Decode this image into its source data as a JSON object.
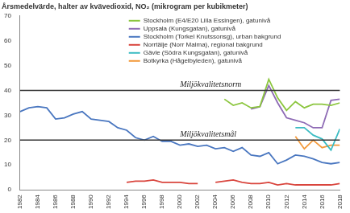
{
  "chart_data": {
    "type": "line",
    "title": "Årsmedelvärde, halter av kvävedioxid, NO₂ (mikrogram per kubikmeter)",
    "x": [
      1982,
      1983,
      1984,
      1985,
      1986,
      1987,
      1988,
      1989,
      1990,
      1991,
      1992,
      1993,
      1994,
      1995,
      1996,
      1997,
      1998,
      1999,
      2000,
      2001,
      2002,
      2003,
      2004,
      2005,
      2006,
      2007,
      2008,
      2009,
      2010,
      2011,
      2012,
      2013,
      2014,
      2015,
      2016,
      2017,
      2018
    ],
    "series": [
      {
        "name": "Stockholm (E4/E20 Lilla Essingen), gatunivå",
        "color": "#8cc63f",
        "values": [
          null,
          null,
          null,
          null,
          null,
          null,
          null,
          null,
          null,
          null,
          null,
          null,
          null,
          null,
          null,
          null,
          null,
          null,
          null,
          null,
          null,
          null,
          null,
          36.5,
          34,
          35,
          33,
          33.5,
          44.5,
          37,
          32,
          35.5,
          33,
          34.5,
          34.5,
          34,
          35
        ]
      },
      {
        "name": "Uppsala (Kungsgatan), gatunivå",
        "color": "#8e6bb5",
        "values": [
          null,
          null,
          null,
          null,
          null,
          null,
          null,
          null,
          null,
          null,
          null,
          null,
          null,
          null,
          null,
          null,
          null,
          null,
          null,
          null,
          null,
          null,
          null,
          null,
          null,
          null,
          32.5,
          33.5,
          42,
          35,
          29,
          28,
          27,
          25,
          25,
          36,
          36.5
        ]
      },
      {
        "name": "Stockholm (Torkel Knutssonsg), urban bakgrund",
        "color": "#4a77c0",
        "values": [
          31.5,
          33,
          33.5,
          33,
          28.5,
          29,
          30.5,
          31.5,
          28.5,
          28,
          27.5,
          25,
          24,
          21,
          20,
          21.5,
          19.5,
          19.5,
          18,
          18.5,
          17.5,
          18,
          16.5,
          17,
          15.5,
          17,
          14,
          13.5,
          15,
          10.5,
          12,
          14,
          13.5,
          12.5,
          11,
          10.5,
          11
        ]
      },
      {
        "name": "Norrtälje (Norr Malma), regional bakgrund",
        "color": "#d9453d",
        "values": [
          null,
          null,
          null,
          null,
          null,
          null,
          null,
          null,
          null,
          null,
          null,
          null,
          3,
          3.5,
          3.5,
          4,
          3,
          3,
          3,
          2.5,
          2.5,
          null,
          3,
          3.5,
          4,
          3,
          2.5,
          2.5,
          3,
          2,
          2.5,
          2,
          2,
          2,
          2,
          2,
          2.5
        ]
      },
      {
        "name": "Gävle (Södra Kungsgatan), gatunivå",
        "color": "#3cbcc3",
        "values": [
          null,
          null,
          null,
          null,
          null,
          null,
          null,
          null,
          null,
          null,
          null,
          null,
          null,
          null,
          null,
          null,
          null,
          null,
          null,
          null,
          null,
          null,
          null,
          null,
          null,
          null,
          null,
          null,
          null,
          null,
          null,
          25,
          25,
          22,
          20.5,
          16,
          24.5
        ]
      },
      {
        "name": "Botkyrka (Hågelbyleden), gatunivå",
        "color": "#f39a3c",
        "values": [
          null,
          null,
          null,
          null,
          null,
          null,
          null,
          null,
          null,
          null,
          null,
          null,
          null,
          null,
          null,
          null,
          null,
          null,
          null,
          null,
          null,
          null,
          null,
          null,
          null,
          null,
          null,
          null,
          null,
          null,
          null,
          21.5,
          16.5,
          20,
          17,
          18,
          18
        ]
      }
    ],
    "annotations": [
      {
        "text": "Miljökvalitetsnorm",
        "y": 40,
        "x": 2000
      },
      {
        "text": "Miljökvalitetsmål",
        "y": 20,
        "x": 2000
      }
    ],
    "xlim": [
      1982,
      2018
    ],
    "xticks": [
      1982,
      1984,
      1986,
      1988,
      1990,
      1992,
      1994,
      1996,
      1998,
      2000,
      2002,
      2004,
      2006,
      2008,
      2010,
      2012,
      2014,
      2016,
      2018
    ],
    "ylim": [
      0,
      70
    ],
    "yticks": [
      0,
      10,
      20,
      30,
      40,
      50,
      60,
      70
    ],
    "grid": false,
    "legend": "top"
  }
}
